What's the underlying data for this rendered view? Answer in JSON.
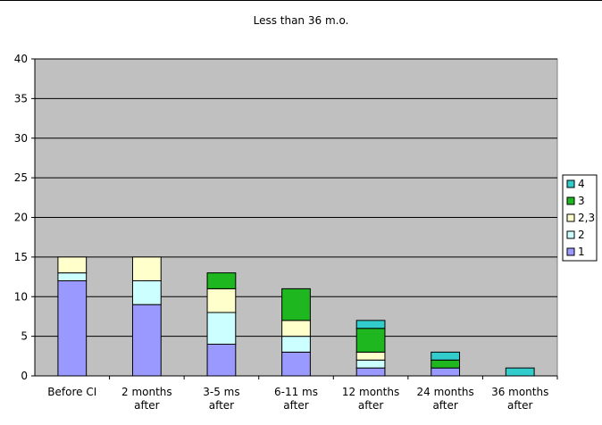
{
  "chart_data": {
    "type": "bar",
    "stacked": true,
    "title": "Less than 36 m.o.",
    "xlabel": "",
    "ylabel": "",
    "ylim": [
      0,
      40
    ],
    "yticks": [
      0,
      5,
      10,
      15,
      20,
      25,
      30,
      35,
      40
    ],
    "grid": true,
    "legend_position": "right",
    "plot_background": "#C0C0C0",
    "categories": [
      [
        "Before CI"
      ],
      [
        "2 months",
        "after"
      ],
      [
        "3-5 ms",
        "after"
      ],
      [
        "6-11 ms",
        "after"
      ],
      [
        "12 months",
        "after"
      ],
      [
        "24 months",
        "after"
      ],
      [
        "36 months",
        "after"
      ]
    ],
    "series": [
      {
        "name": "1",
        "color": "#9999FF",
        "values": [
          12,
          9,
          4,
          3,
          1,
          1,
          0
        ]
      },
      {
        "name": "2",
        "color": "#CCFFFF",
        "values": [
          1,
          3,
          4,
          2,
          1,
          0,
          0
        ]
      },
      {
        "name": "2,3",
        "color": "#FFFFCC",
        "values": [
          2,
          3,
          3,
          2,
          1,
          0,
          0
        ]
      },
      {
        "name": "3",
        "color": "#1FB71F",
        "values": [
          0,
          0,
          2,
          4,
          3,
          1,
          0
        ]
      },
      {
        "name": "4",
        "color": "#33CCCC",
        "values": [
          0,
          0,
          0,
          0,
          1,
          1,
          1
        ]
      }
    ]
  }
}
